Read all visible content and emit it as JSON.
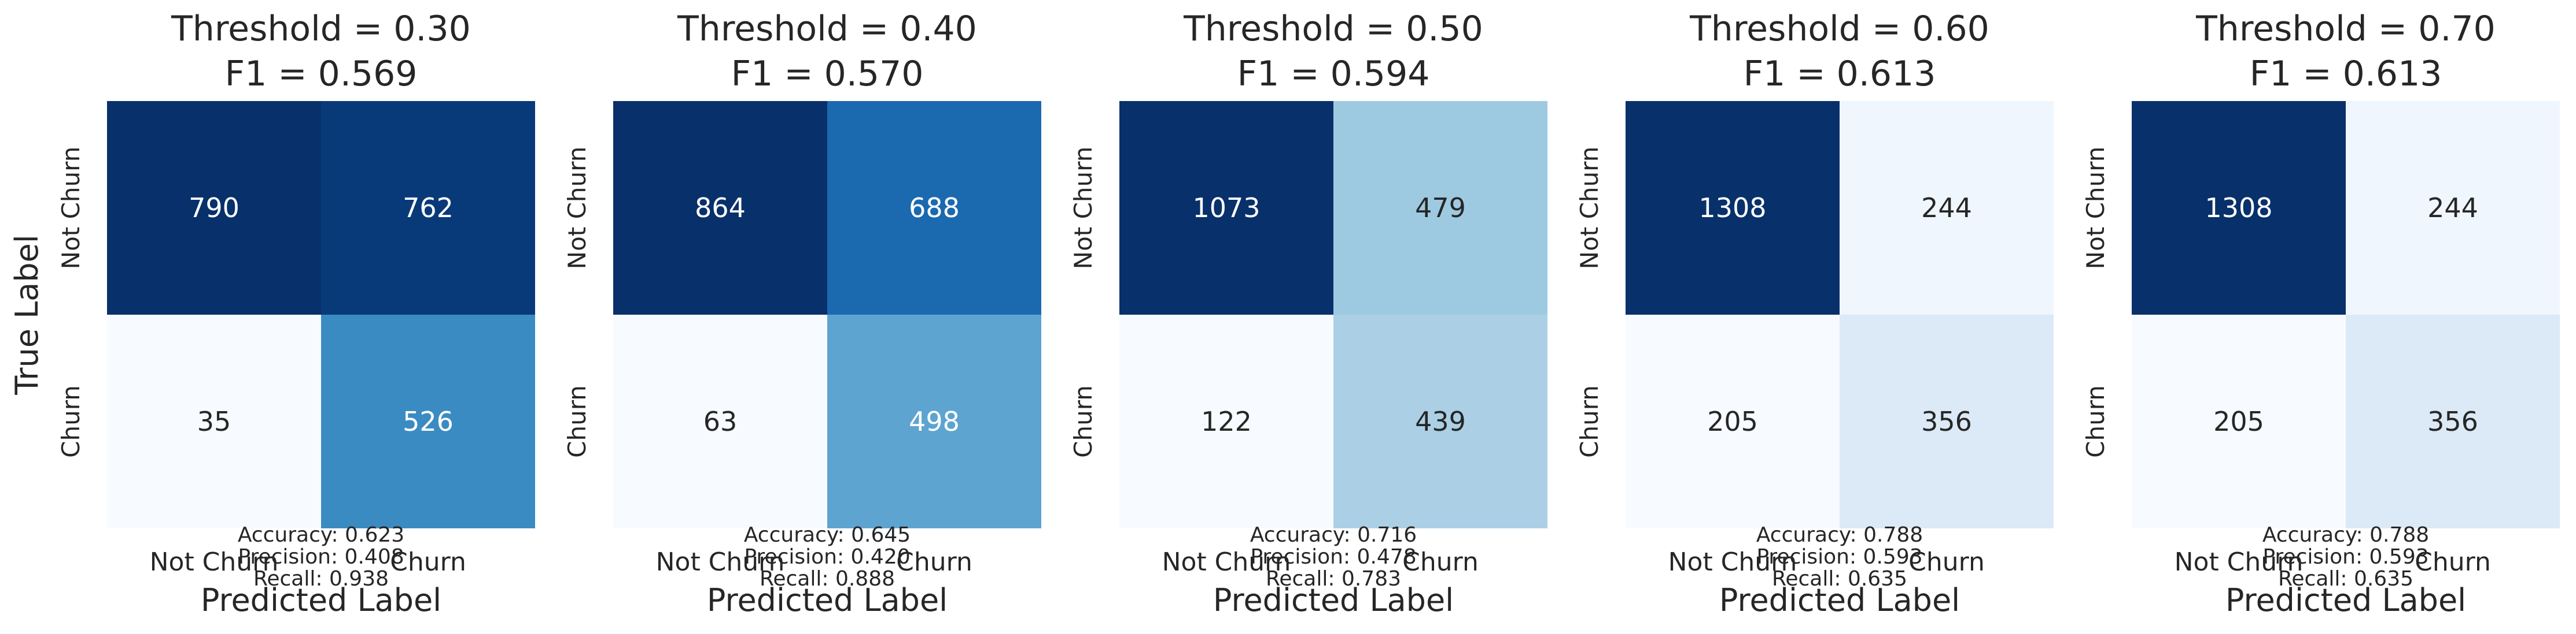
{
  "chart_data": [
    {
      "type": "heatmap",
      "title": "Threshold = 0.30",
      "subtitle": "F1 = 0.569",
      "xlabel": "Predicted Label",
      "ylabel": "True Label",
      "x_ticklabels": [
        "Not Churn",
        "Churn"
      ],
      "y_ticklabels": [
        "Not Churn",
        "Churn"
      ],
      "matrix": [
        [
          790,
          762
        ],
        [
          35,
          526
        ]
      ],
      "metrics": [
        "Accuracy: 0.623",
        "Precision: 0.408",
        "Recall: 0.938"
      ]
    },
    {
      "type": "heatmap",
      "title": "Threshold = 0.40",
      "subtitle": "F1 = 0.570",
      "xlabel": "Predicted Label",
      "ylabel": "",
      "x_ticklabels": [
        "Not Churn",
        "Churn"
      ],
      "y_ticklabels": [
        "Not Churn",
        "Churn"
      ],
      "matrix": [
        [
          864,
          688
        ],
        [
          63,
          498
        ]
      ],
      "metrics": [
        "Accuracy: 0.645",
        "Precision: 0.420",
        "Recall: 0.888"
      ]
    },
    {
      "type": "heatmap",
      "title": "Threshold = 0.50",
      "subtitle": "F1 = 0.594",
      "xlabel": "Predicted Label",
      "ylabel": "",
      "x_ticklabels": [
        "Not Churn",
        "Churn"
      ],
      "y_ticklabels": [
        "Not Churn",
        "Churn"
      ],
      "matrix": [
        [
          1073,
          479
        ],
        [
          122,
          439
        ]
      ],
      "metrics": [
        "Accuracy: 0.716",
        "Precision: 0.478",
        "Recall: 0.783"
      ]
    },
    {
      "type": "heatmap",
      "title": "Threshold = 0.60",
      "subtitle": "F1 = 0.613",
      "xlabel": "Predicted Label",
      "ylabel": "",
      "x_ticklabels": [
        "Not Churn",
        "Churn"
      ],
      "y_ticklabels": [
        "Not Churn",
        "Churn"
      ],
      "matrix": [
        [
          1308,
          244
        ],
        [
          205,
          356
        ]
      ],
      "metrics": [
        "Accuracy: 0.788",
        "Precision: 0.593",
        "Recall: 0.635"
      ]
    },
    {
      "type": "heatmap",
      "title": "Threshold = 0.70",
      "subtitle": "F1 = 0.613",
      "xlabel": "Predicted Label",
      "ylabel": "",
      "x_ticklabels": [
        "Not Churn",
        "Churn"
      ],
      "y_ticklabels": [
        "Not Churn",
        "Churn"
      ],
      "matrix": [
        [
          1308,
          244
        ],
        [
          205,
          356
        ]
      ],
      "metrics": [
        "Accuracy: 0.788",
        "Precision: 0.593",
        "Recall: 0.635"
      ]
    }
  ],
  "colormap": [
    "#f7fbff",
    "#deebf7",
    "#c6dbef",
    "#9ecae1",
    "#6baed6",
    "#4292c6",
    "#2171b5",
    "#08519c",
    "#08306b"
  ]
}
